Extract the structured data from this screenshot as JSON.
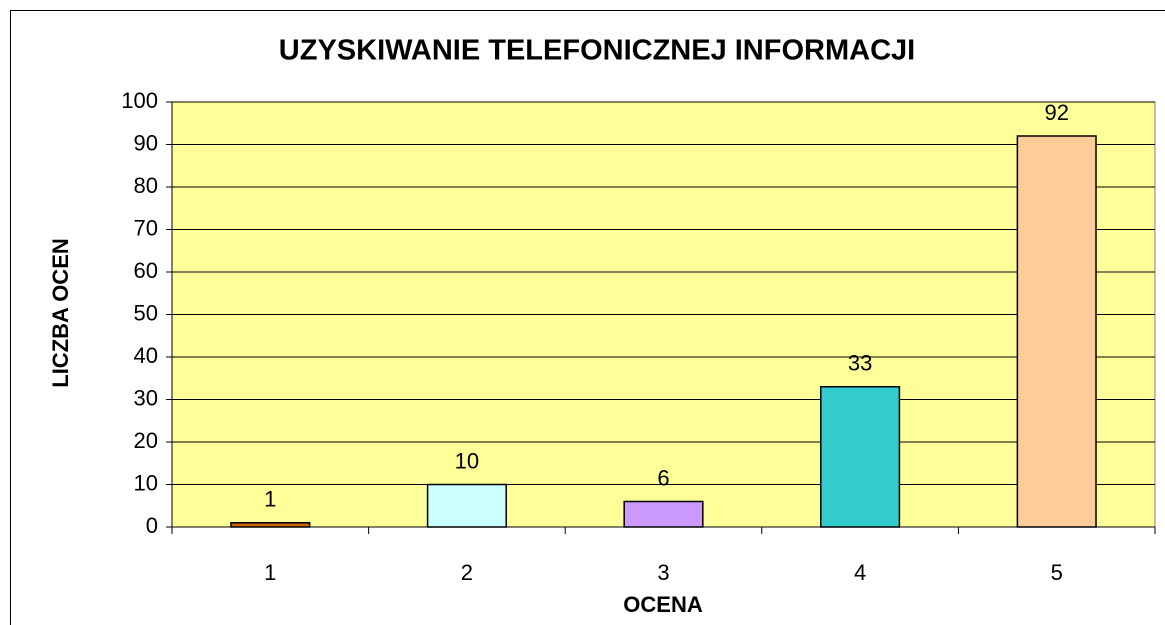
{
  "chart_data": {
    "type": "bar",
    "title": "UZYSKIWANIE TELEFONICZNEJ INFORMACJI",
    "x_label": "OCENA",
    "y_label": "LICZBA OCEN",
    "categories": [
      "1",
      "2",
      "3",
      "4",
      "5"
    ],
    "values": [
      1,
      10,
      6,
      33,
      92
    ],
    "colors": [
      "#cc6600",
      "#ccffff",
      "#cc99ff",
      "#33cccc",
      "#ffcc99"
    ],
    "plot_background": "#ffff99",
    "ylim": [
      0,
      100
    ],
    "yticks": [
      0,
      10,
      20,
      30,
      40,
      50,
      60,
      70,
      80,
      90,
      100
    ],
    "grid": true
  }
}
